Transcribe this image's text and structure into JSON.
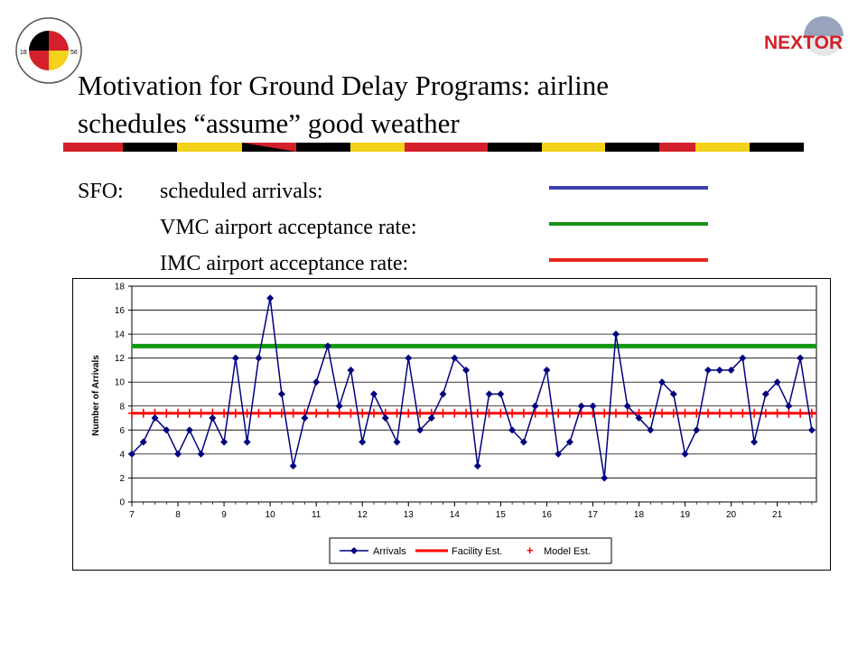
{
  "header": {
    "title_line1": "Motivation for Ground Delay Programs:  airline",
    "title_line2": "schedules “assume” good weather",
    "umd_logo_text": "UNIVERSITY OF MARYLAND",
    "umd_logo_years": [
      "18",
      "56"
    ],
    "nextor_logo_text": "NEXTOR"
  },
  "key": {
    "airport": "SFO:",
    "items": [
      {
        "label": "scheduled arrivals:",
        "color": "#3b3fb0"
      },
      {
        "label": "VMC airport acceptance rate:",
        "color": "#1a8f1a"
      },
      {
        "label": "IMC airport acceptance rate:",
        "color": "#e8231a"
      }
    ]
  },
  "colors": {
    "arrivals": "#000080",
    "facility": "#ff0000",
    "vmc": "#119a11",
    "model": "#ff0000",
    "stripe_red": "#d4202a",
    "stripe_yellow": "#f2d21b",
    "stripe_black": "#000000"
  },
  "chart_data": {
    "type": "line",
    "ylabel": "Number of Arrivals",
    "ylim": [
      0,
      18
    ],
    "yticks": [
      0,
      2,
      4,
      6,
      8,
      10,
      12,
      14,
      16,
      18
    ],
    "xlim": [
      7,
      21.85
    ],
    "xticks": [
      "7",
      "8",
      "9",
      "10",
      "11",
      "12",
      "13",
      "14",
      "15",
      "16",
      "17",
      "18",
      "19",
      "20",
      "21"
    ],
    "grid": "horizontal",
    "legend": "bottom",
    "series": [
      {
        "name": "Arrivals",
        "x": [
          7,
          7.25,
          7.5,
          7.75,
          8,
          8.25,
          8.5,
          8.75,
          9,
          9.25,
          9.5,
          9.75,
          10,
          10.25,
          10.5,
          10.75,
          11,
          11.25,
          11.5,
          11.75,
          12,
          12.25,
          12.5,
          12.75,
          13,
          13.25,
          13.5,
          13.75,
          14,
          14.25,
          14.5,
          14.75,
          15,
          15.25,
          15.5,
          15.75,
          16,
          16.25,
          16.5,
          16.75,
          17,
          17.25,
          17.5,
          17.75,
          18,
          18.25,
          18.5,
          18.75,
          19,
          19.25,
          19.5,
          19.75,
          20,
          20.25,
          20.5,
          20.75,
          21,
          21.25,
          21.5,
          21.75
        ],
        "values": [
          4,
          5,
          7,
          6,
          4,
          6,
          4,
          7,
          5,
          12,
          5,
          12,
          17,
          9,
          3,
          7,
          10,
          13,
          8,
          11,
          5,
          9,
          7,
          5,
          12,
          6,
          7,
          9,
          12,
          11,
          3,
          9,
          9,
          6,
          5,
          8,
          11,
          4,
          5,
          8,
          8,
          2,
          14,
          8,
          7,
          6,
          10,
          9,
          4,
          6,
          11,
          11,
          11,
          12,
          5,
          9,
          10,
          8,
          12,
          6
        ]
      },
      {
        "name": "Facility Est.",
        "value": 7.4
      },
      {
        "name": "Model Est.",
        "value": 7.4
      }
    ],
    "vmc_rate": 13
  },
  "chart_legend": {
    "arrivals": "Arrivals",
    "facility": "Facility Est.",
    "model": "Model Est."
  }
}
